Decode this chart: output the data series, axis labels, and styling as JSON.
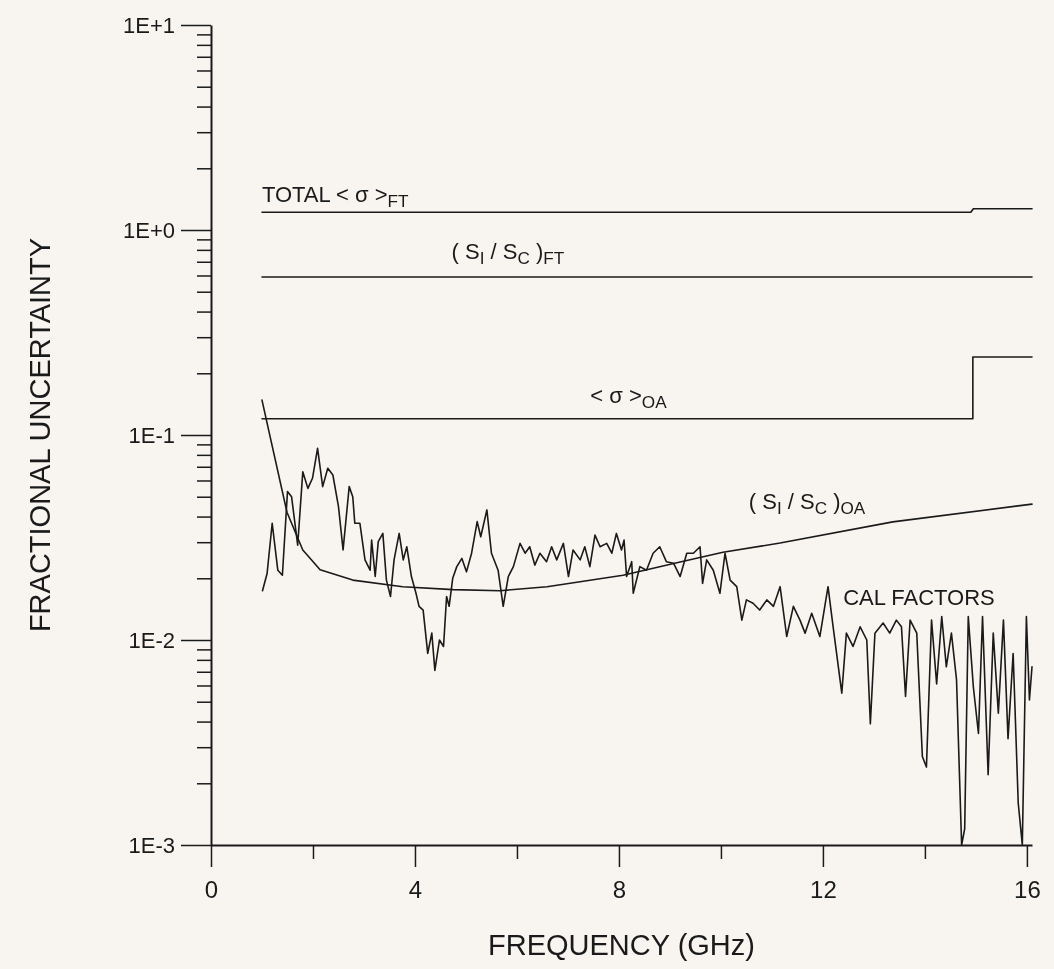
{
  "chart_data": {
    "type": "line",
    "xlabel": "FREQUENCY  (GHz)",
    "ylabel": "FRACTIONAL UNCERTAINTY",
    "log": "y",
    "xlim": [
      0,
      16.1
    ],
    "ylim": [
      0.001,
      10
    ],
    "xticks": [
      0,
      {
        "value": 2,
        "label": null
      },
      4,
      {
        "value": 6,
        "label": null
      },
      8,
      {
        "value": 10,
        "label": null
      },
      12,
      {
        "value": 14,
        "label": null
      },
      16
    ],
    "yticks": [
      {
        "value": 0.001,
        "label": "1E-3"
      },
      {
        "value": 0.002,
        "label": null
      },
      {
        "value": 0.003,
        "label": null
      },
      {
        "value": 0.004,
        "label": null
      },
      {
        "value": 0.005,
        "label": null
      },
      {
        "value": 0.006,
        "label": null
      },
      {
        "value": 0.007,
        "label": null
      },
      {
        "value": 0.008,
        "label": null
      },
      {
        "value": 0.009,
        "label": null
      },
      {
        "value": 0.01,
        "label": "1E-2"
      },
      {
        "value": 0.02,
        "label": null
      },
      {
        "value": 0.03,
        "label": null
      },
      {
        "value": 0.04,
        "label": null
      },
      {
        "value": 0.05,
        "label": null
      },
      {
        "value": 0.06,
        "label": null
      },
      {
        "value": 0.07,
        "label": null
      },
      {
        "value": 0.08,
        "label": null
      },
      {
        "value": 0.09,
        "label": null
      },
      {
        "value": 0.1,
        "label": "1E-1"
      },
      {
        "value": 0.2,
        "label": null
      },
      {
        "value": 0.3,
        "label": null
      },
      {
        "value": 0.4,
        "label": null
      },
      {
        "value": 0.5,
        "label": null
      },
      {
        "value": 0.6,
        "label": null
      },
      {
        "value": 0.7,
        "label": null
      },
      {
        "value": 0.8,
        "label": null
      },
      {
        "value": 0.9,
        "label": null
      },
      {
        "value": 1,
        "label": "1E+0"
      },
      {
        "value": 2,
        "label": null
      },
      {
        "value": 3,
        "label": null
      },
      {
        "value": 4,
        "label": null
      },
      {
        "value": 5,
        "label": null
      },
      {
        "value": 6,
        "label": null
      },
      {
        "value": 7,
        "label": null
      },
      {
        "value": 8,
        "label": null
      },
      {
        "value": 9,
        "label": null
      },
      {
        "value": 10,
        "label": "1E+1"
      }
    ],
    "series": [
      {
        "name": "TOTAL   < σ >$_{FT}$",
        "color": "#1a1a1a",
        "x": [
          1.0,
          14.9,
          14.95,
          16.1
        ],
        "values": [
          1.22,
          1.22,
          1.27,
          1.27
        ]
      },
      {
        "name": "( S$_{I}$ / S$_{C}$ )$_{FT}$",
        "color": "#1a1a1a",
        "x": [
          1.0,
          16.1
        ],
        "values": [
          0.59,
          0.59
        ]
      },
      {
        "name": "< σ >$_{OA}$",
        "color": "#1a1a1a",
        "x": [
          1.0,
          14.94,
          14.94,
          16.1
        ],
        "values": [
          0.12,
          0.12,
          0.24,
          0.24
        ]
      },
      {
        "name": "( S$_{I}$ / S$_{C}$ )$_{OA}$",
        "color": "#1a1a1a",
        "x": [
          1.0,
          1.16,
          1.49,
          1.8,
          2.14,
          2.78,
          3.76,
          4.75,
          5.67,
          6.59,
          8.08,
          9.2,
          10.04,
          11.16,
          13.37,
          16.1
        ],
        "values": [
          0.148,
          0.098,
          0.042,
          0.0275,
          0.022,
          0.0196,
          0.0182,
          0.0176,
          0.0174,
          0.0182,
          0.0207,
          0.024,
          0.0268,
          0.0297,
          0.0377,
          0.046
        ]
      },
      {
        "name": "CAL FACTORS",
        "color": "#1a1a1a",
        "x": [
          1.01,
          1.1,
          1.2,
          1.31,
          1.4,
          1.5,
          1.58,
          1.7,
          1.8,
          1.9,
          1.99,
          2.09,
          2.19,
          2.29,
          2.39,
          2.5,
          2.59,
          2.71,
          2.78,
          2.82,
          2.92,
          3.02,
          3.12,
          3.15,
          3.22,
          3.28,
          3.37,
          3.44,
          3.52,
          3.59,
          3.69,
          3.77,
          3.84,
          3.93,
          4.02,
          4.08,
          4.16,
          4.25,
          4.33,
          4.39,
          4.48,
          4.56,
          4.62,
          4.67,
          4.74,
          4.82,
          4.92,
          5.01,
          5.11,
          5.22,
          5.29,
          5.41,
          5.5,
          5.63,
          5.73,
          5.83,
          5.93,
          6.06,
          6.16,
          6.25,
          6.35,
          6.45,
          6.58,
          6.68,
          6.78,
          6.91,
          7.01,
          7.1,
          7.24,
          7.33,
          7.43,
          7.53,
          7.63,
          7.76,
          7.86,
          7.95,
          8.05,
          8.1,
          8.15,
          8.25,
          8.28,
          8.41,
          8.54,
          8.67,
          8.8,
          8.93,
          9.07,
          9.2,
          9.33,
          9.46,
          9.59,
          9.64,
          9.72,
          9.85,
          9.98,
          10.08,
          10.18,
          10.31,
          10.41,
          10.5,
          10.63,
          10.76,
          10.9,
          11.03,
          11.16,
          11.29,
          11.42,
          11.55,
          11.65,
          11.78,
          11.94,
          12.1,
          12.2,
          12.37,
          12.46,
          12.59,
          12.73,
          12.86,
          12.93,
          13.02,
          13.18,
          13.31,
          13.44,
          13.54,
          13.62,
          13.71,
          13.84,
          13.95,
          14.03,
          14.13,
          14.23,
          14.33,
          14.42,
          14.52,
          14.62,
          14.72,
          14.78,
          14.85,
          14.95,
          15.05,
          15.13,
          15.24,
          15.34,
          15.44,
          15.54,
          15.63,
          15.73,
          15.83,
          15.91,
          15.99,
          16.05,
          16.1
        ],
        "values": [
          0.0174,
          0.0211,
          0.0371,
          0.0219,
          0.0207,
          0.053,
          0.05,
          0.029,
          0.0662,
          0.0549,
          0.0615,
          0.0861,
          0.056,
          0.0688,
          0.0638,
          0.0447,
          0.0275,
          0.056,
          0.05,
          0.0371,
          0.0371,
          0.0246,
          0.0219,
          0.0307,
          0.0204,
          0.0302,
          0.0331,
          0.0196,
          0.0163,
          0.0246,
          0.0331,
          0.0246,
          0.0285,
          0.0204,
          0.0169,
          0.0146,
          0.014,
          0.0086,
          0.0108,
          0.0071,
          0.01,
          0.0093,
          0.0163,
          0.0146,
          0.02,
          0.0228,
          0.025,
          0.0215,
          0.0265,
          0.0378,
          0.0319,
          0.0431,
          0.0265,
          0.0219,
          0.0146,
          0.0204,
          0.0228,
          0.0296,
          0.0265,
          0.0285,
          0.0232,
          0.0265,
          0.0241,
          0.0285,
          0.0246,
          0.0296,
          0.0204,
          0.0275,
          0.0246,
          0.0285,
          0.0228,
          0.0325,
          0.0285,
          0.0296,
          0.0265,
          0.0331,
          0.0275,
          0.0307,
          0.0204,
          0.0241,
          0.0169,
          0.0228,
          0.0219,
          0.0265,
          0.0285,
          0.0241,
          0.0237,
          0.0204,
          0.0265,
          0.0265,
          0.0285,
          0.0189,
          0.0246,
          0.0219,
          0.0169,
          0.0265,
          0.0196,
          0.0182,
          0.0125,
          0.0157,
          0.0151,
          0.014,
          0.0157,
          0.0146,
          0.0182,
          0.0104,
          0.0146,
          0.0125,
          0.0108,
          0.0135,
          0.0104,
          0.0182,
          0.0116,
          0.0055,
          0.0108,
          0.0093,
          0.0116,
          0.01,
          0.0039,
          0.0108,
          0.0121,
          0.0108,
          0.0125,
          0.0116,
          0.0053,
          0.0125,
          0.0108,
          0.0027,
          0.0024,
          0.0125,
          0.0061,
          0.013,
          0.0074,
          0.0108,
          0.0064,
          0.001,
          0.0012,
          0.013,
          0.0059,
          0.0035,
          0.013,
          0.0022,
          0.0108,
          0.0044,
          0.0125,
          0.0033,
          0.0086,
          0.0016,
          0.001,
          0.013,
          0.0051,
          0.0074
        ]
      }
    ]
  }
}
